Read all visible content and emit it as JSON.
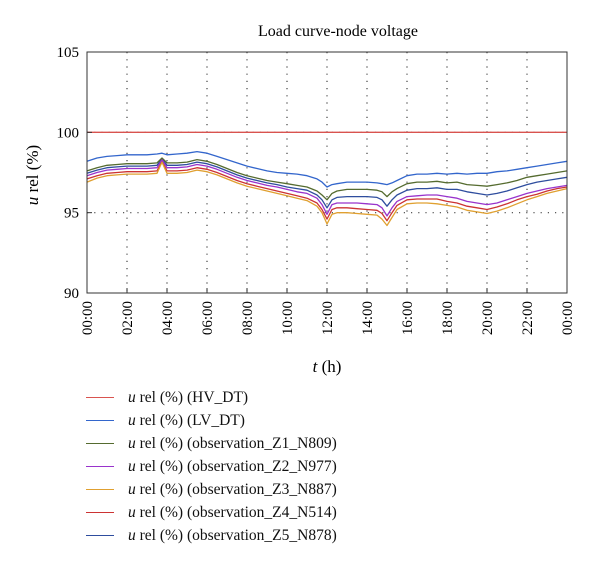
{
  "chart_data": {
    "type": "line",
    "title": "Load curve-node voltage",
    "xlabel": "t (h)",
    "ylabel": "u rel (%)",
    "xlabel_italic": "t",
    "xlabel_rest": " (h)",
    "ylabel_italic": "u",
    "ylabel_rest": " rel (%)",
    "ylim": [
      90,
      105
    ],
    "yticks": [
      90,
      95,
      100,
      105
    ],
    "xlim": [
      0,
      24
    ],
    "xticks": [
      0,
      2,
      4,
      6,
      8,
      10,
      12,
      14,
      16,
      18,
      20,
      22,
      24
    ],
    "xtick_labels": [
      "00:00",
      "02:00",
      "04:00",
      "06:00",
      "08:00",
      "10:00",
      "12:00",
      "14:00",
      "16:00",
      "18:00",
      "20:00",
      "22:00",
      "00:00"
    ],
    "grid": "dotted",
    "legend_position": "bottom",
    "x": [
      0,
      0.5,
      1,
      1.5,
      2,
      2.5,
      3,
      3.5,
      3.75,
      4,
      4.5,
      5,
      5.5,
      6,
      6.5,
      7,
      7.5,
      8,
      8.5,
      9,
      9.5,
      10,
      10.5,
      11,
      11.5,
      11.75,
      12,
      12.25,
      12.5,
      13,
      13.5,
      14,
      14.5,
      14.75,
      15,
      15.25,
      15.5,
      16,
      16.5,
      17,
      17.5,
      18,
      18.5,
      19,
      19.5,
      20,
      20.5,
      21,
      21.5,
      22,
      22.5,
      23,
      23.5,
      24
    ],
    "series": [
      {
        "name": "u rel (%) (HV_DT)",
        "color": "#d9534f",
        "values": [
          100,
          100,
          100,
          100,
          100,
          100,
          100,
          100,
          100,
          100,
          100,
          100,
          100,
          100,
          100,
          100,
          100,
          100,
          100,
          100,
          100,
          100,
          100,
          100,
          100,
          100,
          100,
          100,
          100,
          100,
          100,
          100,
          100,
          100,
          100,
          100,
          100,
          100,
          100,
          100,
          100,
          100,
          100,
          100,
          100,
          100,
          100,
          100,
          100,
          100,
          100,
          100,
          100,
          100
        ]
      },
      {
        "name": "u rel (%) (LV_DT)",
        "color": "#3366cc",
        "values": [
          98.2,
          98.4,
          98.5,
          98.55,
          98.6,
          98.6,
          98.6,
          98.65,
          98.7,
          98.6,
          98.65,
          98.7,
          98.8,
          98.7,
          98.5,
          98.3,
          98.1,
          97.9,
          97.75,
          97.6,
          97.5,
          97.45,
          97.4,
          97.3,
          97.1,
          96.9,
          96.6,
          96.75,
          96.8,
          96.9,
          96.9,
          96.9,
          96.85,
          96.8,
          96.75,
          96.85,
          97.0,
          97.3,
          97.4,
          97.4,
          97.45,
          97.4,
          97.45,
          97.4,
          97.45,
          97.45,
          97.55,
          97.6,
          97.7,
          97.8,
          97.9,
          98.0,
          98.1,
          98.2
        ]
      },
      {
        "name": "u rel (%) (observation_Z1_N809)",
        "color": "#556b2f",
        "values": [
          97.6,
          97.8,
          97.95,
          98.0,
          98.05,
          98.05,
          98.05,
          98.1,
          98.4,
          98.1,
          98.1,
          98.15,
          98.3,
          98.2,
          98.0,
          97.75,
          97.5,
          97.3,
          97.15,
          97.0,
          96.9,
          96.8,
          96.7,
          96.6,
          96.35,
          96.1,
          95.8,
          96.2,
          96.35,
          96.45,
          96.45,
          96.45,
          96.4,
          96.3,
          96.0,
          96.3,
          96.5,
          96.8,
          96.9,
          96.9,
          96.95,
          96.85,
          96.9,
          96.75,
          96.7,
          96.65,
          96.75,
          96.85,
          97.0,
          97.2,
          97.3,
          97.4,
          97.5,
          97.6
        ]
      },
      {
        "name": "u rel (%) (observation_Z2_N977)",
        "color": "#9933cc",
        "values": [
          97.3,
          97.5,
          97.65,
          97.7,
          97.75,
          97.75,
          97.75,
          97.8,
          98.3,
          97.8,
          97.8,
          97.85,
          98.0,
          97.9,
          97.7,
          97.45,
          97.2,
          97.0,
          96.85,
          96.7,
          96.6,
          96.45,
          96.3,
          96.2,
          95.9,
          95.5,
          94.9,
          95.5,
          95.6,
          95.6,
          95.6,
          95.55,
          95.5,
          95.3,
          94.8,
          95.3,
          95.7,
          96.0,
          96.05,
          96.1,
          96.1,
          96.0,
          95.9,
          95.7,
          95.6,
          95.5,
          95.6,
          95.8,
          96.0,
          96.2,
          96.35,
          96.5,
          96.6,
          96.7
        ]
      },
      {
        "name": "u rel (%) (observation_Z3_N887)",
        "color": "#e0a030",
        "values": [
          96.9,
          97.15,
          97.3,
          97.35,
          97.4,
          97.4,
          97.4,
          97.45,
          98.15,
          97.45,
          97.45,
          97.5,
          97.65,
          97.55,
          97.35,
          97.1,
          96.85,
          96.65,
          96.5,
          96.35,
          96.2,
          96.05,
          95.9,
          95.75,
          95.4,
          95.0,
          94.3,
          94.9,
          95.0,
          95.0,
          94.95,
          94.9,
          94.85,
          94.6,
          94.2,
          94.7,
          95.2,
          95.55,
          95.6,
          95.6,
          95.55,
          95.45,
          95.35,
          95.15,
          95.05,
          94.95,
          95.1,
          95.3,
          95.55,
          95.8,
          96.0,
          96.2,
          96.35,
          96.5
        ]
      },
      {
        "name": "u rel (%) (observation_Z4_N514)",
        "color": "#cc3333",
        "values": [
          97.1,
          97.3,
          97.45,
          97.5,
          97.55,
          97.55,
          97.55,
          97.6,
          98.2,
          97.6,
          97.6,
          97.65,
          97.8,
          97.7,
          97.5,
          97.25,
          97.0,
          96.8,
          96.65,
          96.5,
          96.35,
          96.2,
          96.05,
          95.9,
          95.6,
          95.2,
          94.6,
          95.2,
          95.3,
          95.3,
          95.25,
          95.2,
          95.15,
          94.95,
          94.5,
          95.0,
          95.45,
          95.8,
          95.85,
          95.85,
          95.85,
          95.7,
          95.6,
          95.4,
          95.3,
          95.2,
          95.35,
          95.55,
          95.8,
          96.0,
          96.15,
          96.35,
          96.5,
          96.6
        ]
      },
      {
        "name": "u rel (%) (observation_Z5_N878)",
        "color": "#2e4d9e",
        "values": [
          97.45,
          97.65,
          97.8,
          97.85,
          97.9,
          97.9,
          97.9,
          97.95,
          98.35,
          97.95,
          97.95,
          98.0,
          98.15,
          98.05,
          97.85,
          97.6,
          97.35,
          97.15,
          97.0,
          96.85,
          96.75,
          96.6,
          96.5,
          96.4,
          96.1,
          95.8,
          95.3,
          95.8,
          95.95,
          96.0,
          96.0,
          96.0,
          95.95,
          95.8,
          95.4,
          95.8,
          96.1,
          96.4,
          96.5,
          96.5,
          96.55,
          96.45,
          96.45,
          96.3,
          96.2,
          96.1,
          96.2,
          96.35,
          96.55,
          96.75,
          96.9,
          97.0,
          97.1,
          97.2
        ]
      }
    ]
  }
}
